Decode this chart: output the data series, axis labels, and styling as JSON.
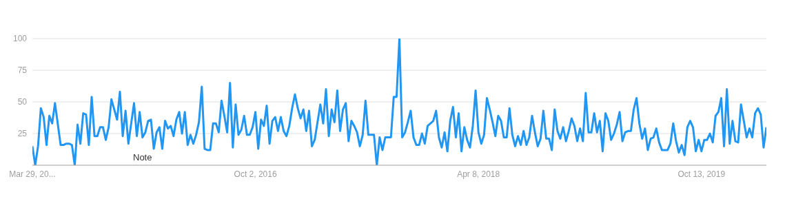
{
  "chart_data": {
    "type": "line",
    "color": "#2196f3",
    "grid": "y",
    "xlim": [
      "2015-03-29",
      "2020-03-22"
    ],
    "xticks": [
      {
        "value": "2015-03-29",
        "label": "Mar 29, 20..."
      },
      {
        "value": "2016-10-02",
        "label": "Oct 2, 2016"
      },
      {
        "value": "2018-04-08",
        "label": "Apr 8, 2018"
      },
      {
        "value": "2019-10-13",
        "label": "Oct 13, 2019"
      }
    ],
    "ylim": [
      0,
      100
    ],
    "yticks": [
      25,
      50,
      75,
      100
    ],
    "annotations": [
      "Note"
    ],
    "x": [
      "2015-03-29",
      "2015-04-05",
      "2015-04-12",
      "2015-04-19",
      "2015-04-26",
      "2015-05-03",
      "2015-05-10",
      "2015-05-17",
      "2015-05-24",
      "2015-06-07",
      "2015-06-14",
      "2015-06-21",
      "2015-06-28",
      "2015-07-05",
      "2015-07-12",
      "2015-07-19",
      "2015-07-26",
      "2015-08-02",
      "2015-08-09",
      "2015-08-16",
      "2015-08-23",
      "2015-08-30",
      "2015-09-06",
      "2015-09-13",
      "2015-09-20",
      "2015-09-27",
      "2015-10-04",
      "2015-10-11",
      "2015-10-18",
      "2015-10-25",
      "2015-11-01",
      "2015-11-08",
      "2015-11-15",
      "2015-11-22",
      "2015-12-06",
      "2015-12-13",
      "2015-12-20",
      "2015-12-27",
      "2016-01-03",
      "2016-01-10",
      "2016-01-17",
      "2016-01-24",
      "2016-01-31",
      "2016-02-07",
      "2016-02-14",
      "2016-02-21",
      "2016-02-28",
      "2016-03-06",
      "2016-03-13",
      "2016-03-20",
      "2016-03-27",
      "2016-04-03",
      "2016-04-10",
      "2016-04-17",
      "2016-04-24",
      "2016-05-01",
      "2016-05-08",
      "2016-05-15",
      "2016-05-22",
      "2016-05-29",
      "2016-06-05",
      "2016-06-12",
      "2016-06-19",
      "2016-06-26",
      "2016-07-03",
      "2016-07-10",
      "2016-07-17",
      "2016-07-24",
      "2016-07-31",
      "2016-08-07",
      "2016-08-14",
      "2016-08-21",
      "2016-08-28",
      "2016-09-04",
      "2016-09-11",
      "2016-09-18",
      "2016-09-25",
      "2016-10-02",
      "2016-10-09",
      "2016-10-16",
      "2016-10-23",
      "2016-10-30",
      "2016-11-06",
      "2016-11-13",
      "2016-11-20",
      "2016-11-27",
      "2016-12-04",
      "2016-12-11",
      "2016-12-18",
      "2016-12-25",
      "2017-01-01",
      "2017-01-08",
      "2017-01-15",
      "2017-01-22",
      "2017-01-29",
      "2017-02-05",
      "2017-02-12",
      "2017-02-19",
      "2017-02-26",
      "2017-03-05",
      "2017-03-12",
      "2017-03-19",
      "2017-03-26",
      "2017-04-02",
      "2017-04-09",
      "2017-04-16",
      "2017-04-23",
      "2017-04-30",
      "2017-05-07",
      "2017-05-14",
      "2017-05-21",
      "2017-05-28",
      "2017-06-04",
      "2017-06-11",
      "2017-06-18",
      "2017-06-25",
      "2017-07-02",
      "2017-07-09",
      "2017-07-16",
      "2017-07-23",
      "2017-07-30",
      "2017-08-06",
      "2017-08-13",
      "2017-08-20",
      "2017-08-27",
      "2017-09-03",
      "2017-09-10",
      "2017-09-17",
      "2017-09-24",
      "2017-10-01",
      "2017-10-08",
      "2017-10-15",
      "2017-10-22",
      "2017-10-29",
      "2017-11-05",
      "2017-11-12",
      "2017-11-19",
      "2017-11-26",
      "2017-12-03",
      "2017-12-10",
      "2017-12-17",
      "2017-12-24",
      "2017-12-31",
      "2018-01-07",
      "2018-01-14",
      "2018-01-21",
      "2018-01-28",
      "2018-02-04",
      "2018-02-11",
      "2018-02-18",
      "2018-02-25",
      "2018-03-04",
      "2018-03-11",
      "2018-03-18",
      "2018-03-25",
      "2018-04-01",
      "2018-04-08",
      "2018-04-15",
      "2018-04-22",
      "2018-04-29",
      "2018-05-06",
      "2018-05-13",
      "2018-05-20",
      "2018-05-27",
      "2018-06-03",
      "2018-06-10",
      "2018-06-17",
      "2018-06-24",
      "2018-07-01",
      "2018-07-08",
      "2018-07-15",
      "2018-07-22",
      "2018-07-29",
      "2018-08-05",
      "2018-08-12",
      "2018-08-19",
      "2018-08-26",
      "2018-09-02",
      "2018-09-09",
      "2018-09-16",
      "2018-09-23",
      "2018-09-30",
      "2018-10-07",
      "2018-10-14",
      "2018-10-21",
      "2018-10-28",
      "2018-11-04",
      "2018-11-11",
      "2018-11-18",
      "2018-11-25",
      "2018-12-02",
      "2018-12-09",
      "2018-12-16",
      "2018-12-23",
      "2018-12-30",
      "2019-01-06",
      "2019-01-13",
      "2019-01-20",
      "2019-01-27",
      "2019-02-03",
      "2019-02-10",
      "2019-02-17",
      "2019-02-24",
      "2019-03-03",
      "2019-03-10",
      "2019-03-17",
      "2019-03-24",
      "2019-03-31",
      "2019-04-07",
      "2019-04-14",
      "2019-04-21",
      "2019-04-28",
      "2019-05-05",
      "2019-05-12",
      "2019-05-19",
      "2019-05-26",
      "2019-06-02",
      "2019-06-09",
      "2019-06-16",
      "2019-06-23",
      "2019-06-30",
      "2019-07-07",
      "2019-07-14",
      "2019-07-21",
      "2019-07-28",
      "2019-08-04",
      "2019-08-11",
      "2019-08-18",
      "2019-08-25",
      "2019-09-01",
      "2019-09-08",
      "2019-09-15",
      "2019-09-22",
      "2019-09-29",
      "2019-10-06",
      "2019-10-13",
      "2019-10-20",
      "2019-10-27",
      "2019-11-03",
      "2019-11-10",
      "2019-11-17",
      "2019-11-24",
      "2019-12-01",
      "2019-12-08",
      "2019-12-15",
      "2019-12-22",
      "2019-12-29",
      "2020-01-05",
      "2020-01-12",
      "2020-01-19",
      "2020-01-26",
      "2020-02-02",
      "2020-02-09",
      "2020-02-16",
      "2020-02-23",
      "2020-03-01",
      "2020-03-08",
      "2020-03-15",
      "2020-03-22"
    ],
    "values": [
      15,
      0,
      15,
      45,
      38,
      16,
      39,
      33,
      49,
      16,
      16,
      17,
      17,
      16,
      0,
      32,
      17,
      41,
      40,
      16,
      54,
      23,
      23,
      30,
      30,
      20,
      30,
      52,
      44,
      36,
      58,
      23,
      43,
      17,
      49,
      23,
      42,
      22,
      26,
      35,
      36,
      13,
      26,
      30,
      13,
      35,
      29,
      31,
      23,
      36,
      42,
      25,
      42,
      16,
      24,
      17,
      24,
      34,
      62,
      13,
      12,
      12,
      33,
      33,
      26,
      51,
      39,
      26,
      65,
      14,
      48,
      24,
      28,
      39,
      24,
      24,
      30,
      42,
      13,
      36,
      31,
      47,
      17,
      35,
      38,
      27,
      38,
      27,
      23,
      31,
      45,
      56,
      45,
      37,
      44,
      27,
      43,
      15,
      20,
      34,
      48,
      33,
      60,
      23,
      44,
      34,
      59,
      27,
      44,
      49,
      19,
      35,
      31,
      26,
      15,
      24,
      51,
      24,
      24,
      24,
      0,
      22,
      12,
      22,
      22,
      22,
      54,
      54,
      100,
      22,
      26,
      34,
      43,
      22,
      16,
      16,
      25,
      17,
      31,
      33,
      35,
      43,
      22,
      14,
      26,
      11,
      35,
      46,
      22,
      41,
      11,
      30,
      20,
      14,
      31,
      59,
      26,
      17,
      24,
      53,
      44,
      34,
      23,
      39,
      35,
      22,
      22,
      45,
      24,
      15,
      23,
      16,
      27,
      16,
      22,
      39,
      26,
      15,
      21,
      43,
      21,
      21,
      12,
      44,
      27,
      21,
      30,
      19,
      27,
      37,
      31,
      19,
      29,
      19,
      57,
      26,
      26,
      41,
      26,
      35,
      11,
      41,
      35,
      20,
      25,
      32,
      42,
      19,
      26,
      27,
      27,
      44,
      53,
      33,
      21,
      29,
      12,
      21,
      22,
      29,
      18,
      12,
      12,
      12,
      17,
      33,
      19,
      10,
      16,
      8,
      30,
      35,
      30,
      11,
      20,
      11,
      20,
      20,
      25,
      18,
      39,
      42,
      53,
      15,
      60,
      17,
      35,
      19,
      18,
      48,
      35,
      22,
      29,
      22,
      41,
      45,
      40,
      14,
      30
    ]
  }
}
